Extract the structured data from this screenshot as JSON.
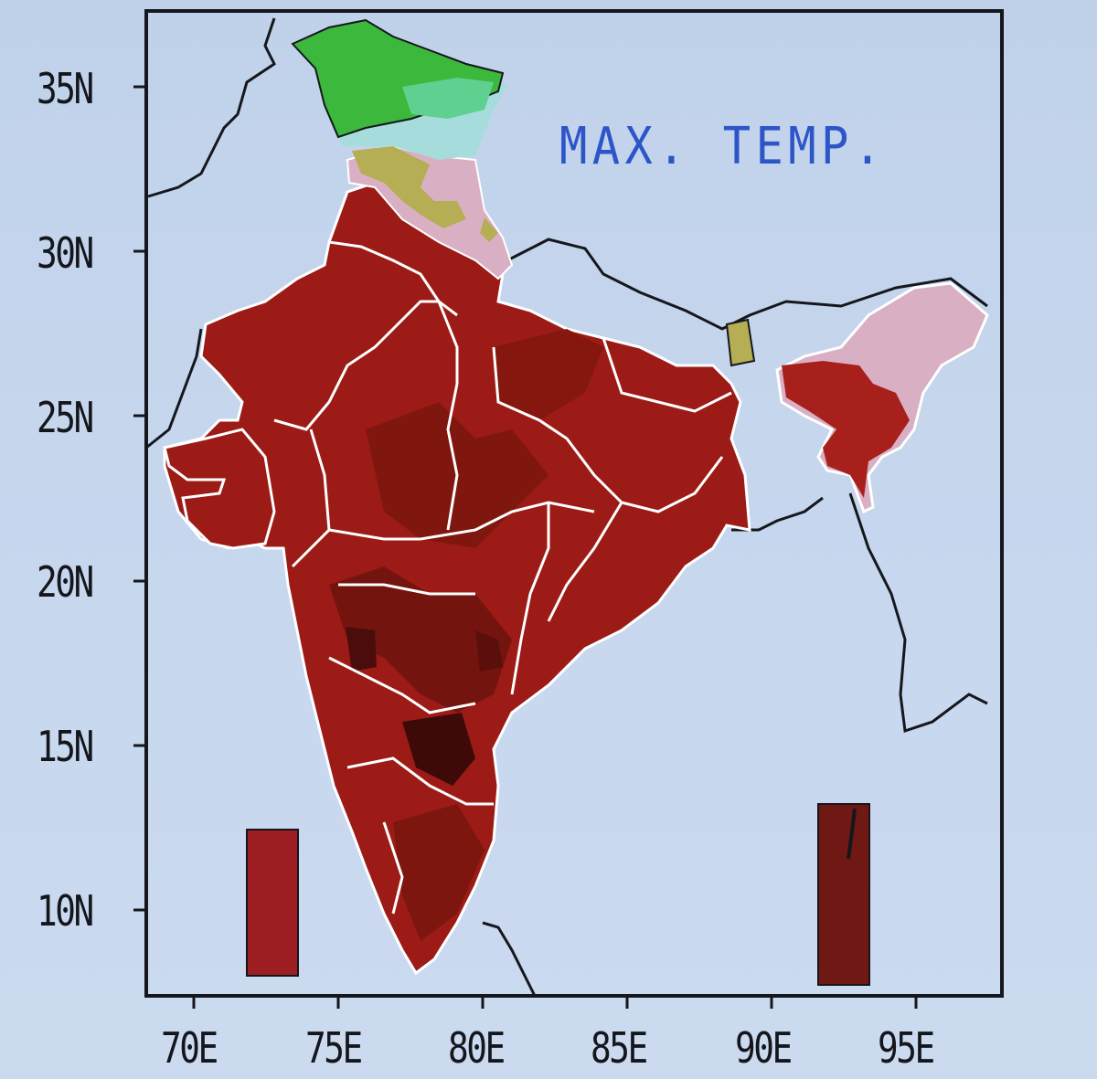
{
  "title": "MAX. TEMP.",
  "y_ticks": [
    "35N",
    "30N",
    "25N",
    "20N",
    "15N",
    "10N"
  ],
  "x_ticks": [
    "70E",
    "75E",
    "80E",
    "85E",
    "90E",
    "95E"
  ],
  "colors": {
    "background": "#c3d4ea",
    "frame": "#15171c",
    "title": "#2d55c8",
    "high_temp": "#9c1b16",
    "hotter": "#7a1512",
    "hottest": "#4a0d0b",
    "mild": "#d9b0c3",
    "cool_olive": "#b6ae55",
    "cold_cyan": "#a6dcdc",
    "coldest_green": "#3cb83c",
    "border": "#ffffff"
  }
}
